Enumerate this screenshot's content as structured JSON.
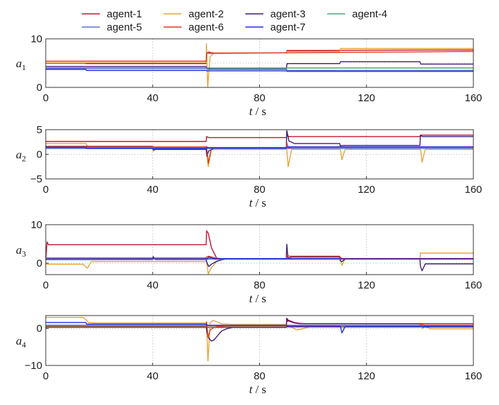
{
  "legend": [
    "agent-1",
    "agent-2",
    "agent-3",
    "agent-4",
    "agent-5",
    "agent-6",
    "agent-7"
  ],
  "colors": {
    "agent-1": "#c8102e",
    "agent-2": "#e8a33d",
    "agent-3": "#3d1a78",
    "agent-4": "#4aa67c",
    "agent-5": "#5b6fd6",
    "agent-6": "#d93a1f",
    "agent-7": "#1f2be0"
  },
  "chart_data": [
    {
      "type": "line",
      "ylabel_main": "a",
      "ylabel_sub": "1",
      "xlabel_main": "t",
      "xlabel_unit": " / s",
      "xlim": [
        0,
        160
      ],
      "ylim": [
        0,
        10
      ],
      "xticks": [
        0,
        40,
        80,
        120,
        160
      ],
      "xticklabels": [
        "0",
        "40",
        "80",
        "120",
        "160"
      ],
      "yticks": [
        0,
        5,
        10
      ],
      "yticklabels": [
        "0",
        "",
        "10"
      ],
      "series": [
        {
          "name": "agent-1",
          "x": [
            0,
            15,
            15.1,
            60,
            60.2,
            61,
            62,
            90,
            90.3,
            160
          ],
          "y": [
            5,
            5,
            4.9,
            4.9,
            7,
            7.3,
            7.1,
            7.1,
            7.6,
            7.7
          ]
        },
        {
          "name": "agent-2",
          "x": [
            0,
            60,
            60.1,
            60.6,
            61.5,
            63,
            90,
            90.3,
            110,
            110.3,
            160
          ],
          "y": [
            5.1,
            5.1,
            9,
            0.1,
            6.3,
            7.1,
            7.1,
            7.4,
            7.4,
            8,
            8
          ]
        },
        {
          "name": "agent-3",
          "x": [
            0,
            60,
            60.3,
            62,
            90,
            90.3,
            110,
            110.3,
            140,
            140.3,
            160
          ],
          "y": [
            4.3,
            4.3,
            3.9,
            3.8,
            3.8,
            4.9,
            4.9,
            5.3,
            5.3,
            4.8,
            4.8
          ]
        },
        {
          "name": "agent-4",
          "x": [
            0,
            160
          ],
          "y": [
            4.0,
            4.0
          ]
        },
        {
          "name": "agent-5",
          "x": [
            0,
            60,
            61,
            90,
            90.3,
            160
          ],
          "y": [
            3.9,
            3.9,
            3.7,
            3.7,
            3.5,
            3.5
          ]
        },
        {
          "name": "agent-6",
          "x": [
            0,
            60,
            60.3,
            61,
            160
          ],
          "y": [
            5.4,
            5.4,
            7.1,
            7.0,
            7.4
          ]
        },
        {
          "name": "agent-7",
          "x": [
            0,
            15,
            15.2,
            60,
            60.3,
            90,
            90.3,
            160
          ],
          "y": [
            3.7,
            3.7,
            3.5,
            3.5,
            3.4,
            3.4,
            3.3,
            3.3
          ]
        }
      ]
    },
    {
      "type": "line",
      "ylabel_main": "a",
      "ylabel_sub": "2",
      "xlabel_main": "t",
      "xlabel_unit": " / s",
      "xlim": [
        0,
        160
      ],
      "ylim": [
        -5,
        5
      ],
      "xticks": [
        0,
        40,
        80,
        120,
        160
      ],
      "xticklabels": [
        "0",
        "40",
        "80",
        "120",
        "160"
      ],
      "yticks": [
        -5,
        0,
        5
      ],
      "yticklabels": [
        "−5",
        "0",
        "5"
      ],
      "series": [
        {
          "name": "agent-1",
          "x": [
            0,
            60,
            60.2,
            61,
            90,
            90.2,
            91,
            140,
            140.2,
            160
          ],
          "y": [
            2.6,
            2.6,
            3.6,
            3.4,
            3.4,
            3.8,
            3.6,
            3.6,
            3.9,
            3.9
          ]
        },
        {
          "name": "agent-2",
          "x": [
            0,
            15,
            16,
            40,
            40.2,
            41,
            60,
            60.2,
            60.8,
            62,
            90,
            90.2,
            90.7,
            92,
            110,
            110.3,
            110.8,
            112,
            140,
            140.3,
            140.8,
            142,
            160
          ],
          "y": [
            2.2,
            2.2,
            1.3,
            1.3,
            0.6,
            1,
            1,
            0.9,
            -2.5,
            1,
            1,
            0.9,
            -2.5,
            1,
            1,
            0.9,
            -1.1,
            1,
            1,
            0.9,
            -1.6,
            1,
            1
          ]
        },
        {
          "name": "agent-3",
          "x": [
            0,
            40,
            40.2,
            41,
            60,
            60.3,
            61,
            63,
            90,
            90.2,
            91,
            93,
            110,
            110.2,
            111,
            140,
            140.2,
            141,
            160
          ],
          "y": [
            1.6,
            1.6,
            0.9,
            1,
            1,
            -0.4,
            0.7,
            1.2,
            1.2,
            4.8,
            2.7,
            2.2,
            2.2,
            1.7,
            1.8,
            1.8,
            3.8,
            3.6,
            3.6
          ]
        },
        {
          "name": "agent-4",
          "x": [
            0,
            160
          ],
          "y": [
            1.4,
            1.4
          ]
        },
        {
          "name": "agent-5",
          "x": [
            0,
            160
          ],
          "y": [
            1.2,
            1.2
          ]
        },
        {
          "name": "agent-6",
          "x": [
            0,
            60,
            60.2,
            60.8,
            62,
            90,
            90.2,
            90.8,
            92,
            160
          ],
          "y": [
            1.5,
            1.5,
            1.6,
            -1.8,
            1.3,
            1.3,
            2.4,
            1.2,
            1.5,
            1.5
          ]
        },
        {
          "name": "agent-7",
          "x": [
            0,
            15,
            15.2,
            60,
            60.3,
            61,
            90,
            90.2,
            160
          ],
          "y": [
            1.4,
            1.4,
            1.2,
            1.2,
            1.4,
            1.3,
            1.3,
            1.5,
            1.5
          ]
        }
      ]
    },
    {
      "type": "line",
      "ylabel_main": "a",
      "ylabel_sub": "3",
      "xlabel_main": "t",
      "xlabel_unit": " / s",
      "xlim": [
        0,
        160
      ],
      "ylim": [
        -3,
        10
      ],
      "xticks": [
        0,
        40,
        80,
        120,
        160
      ],
      "xticklabels": [
        "0",
        "40",
        "80",
        "120",
        "160"
      ],
      "yticks": [
        0,
        10
      ],
      "yticklabels": [
        "0",
        "10"
      ],
      "series": [
        {
          "name": "agent-1",
          "x": [
            0,
            0.5,
            1,
            60,
            60.2,
            60.8,
            62,
            64,
            66,
            68,
            70,
            72,
            90,
            160
          ],
          "y": [
            0.7,
            5.5,
            4.8,
            4.8,
            8.4,
            7.8,
            4,
            1.2,
            1,
            1.1,
            1.1,
            1.1,
            1.1,
            1.1
          ]
        },
        {
          "name": "agent-2",
          "x": [
            0,
            14,
            15,
            15.6,
            17,
            40,
            60,
            60.2,
            60.8,
            62,
            64,
            66,
            68,
            70,
            72,
            90,
            110,
            110.2,
            110.8,
            112,
            140,
            140.2,
            141,
            160
          ],
          "y": [
            -0.3,
            -0.3,
            -1,
            -1.3,
            0.4,
            0.4,
            0.4,
            0.4,
            -2.8,
            -1.2,
            0.4,
            0.9,
            1.1,
            1.1,
            1.1,
            1.1,
            1.1,
            1.1,
            -0.6,
            1.1,
            1.1,
            2.7,
            2.6,
            2.6
          ]
        },
        {
          "name": "agent-3",
          "x": [
            0,
            40,
            40.2,
            41,
            60,
            60.3,
            61,
            62,
            64,
            66,
            68,
            70,
            72,
            90,
            90.2,
            90.6,
            92,
            110,
            110.2,
            110.8,
            112,
            140,
            140.2,
            140.8,
            142,
            160
          ],
          "y": [
            0.9,
            0.9,
            1.7,
            0.9,
            0.9,
            0.2,
            -0.9,
            -0.3,
            0.5,
            0.9,
            1.1,
            1.1,
            1.1,
            1.1,
            4.9,
            1.3,
            1.6,
            1.6,
            0.6,
            0.4,
            1,
            1,
            -0.8,
            -2,
            -0.2,
            -0.2
          ]
        },
        {
          "name": "agent-4",
          "x": [
            0,
            160
          ],
          "y": [
            1.0,
            1.0
          ]
        },
        {
          "name": "agent-5",
          "x": [
            0,
            160
          ],
          "y": [
            1.2,
            1.2
          ]
        },
        {
          "name": "agent-6",
          "x": [
            0,
            60,
            60.2,
            61,
            63,
            66,
            90,
            90.3,
            91,
            110,
            110.3,
            111,
            160
          ],
          "y": [
            1.2,
            1.2,
            1.6,
            1.8,
            1.4,
            1.1,
            1.1,
            2.1,
            1.8,
            1.8,
            1.4,
            1.2,
            1.2
          ]
        },
        {
          "name": "agent-7",
          "x": [
            0,
            60,
            60.3,
            61,
            63,
            160
          ],
          "y": [
            1.3,
            1.3,
            1.0,
            1.6,
            1.1,
            1.1
          ]
        }
      ]
    },
    {
      "type": "line",
      "ylabel_main": "a",
      "ylabel_sub": "4",
      "xlabel_main": "t",
      "xlabel_unit": " / s",
      "xlim": [
        0,
        160
      ],
      "ylim": [
        -10,
        3.5
      ],
      "xticks": [
        0,
        40,
        80,
        120,
        160
      ],
      "xticklabels": [
        "0",
        "40",
        "80",
        "120",
        "160"
      ],
      "yticks": [
        -10,
        0
      ],
      "yticklabels": [
        "−10",
        "0"
      ],
      "series": [
        {
          "name": "agent-1",
          "x": [
            0,
            90,
            90.2,
            90.5,
            91,
            93,
            95,
            97,
            160
          ],
          "y": [
            0.3,
            0.3,
            2.8,
            1.9,
            2.2,
            1.6,
            1.4,
            1.3,
            1.3
          ]
        },
        {
          "name": "agent-2",
          "x": [
            0,
            14,
            15,
            16,
            18,
            60,
            60.2,
            60.7,
            61.5,
            62.5,
            64,
            66,
            68,
            70,
            90,
            92,
            94,
            96,
            98,
            100,
            140,
            140.2,
            140.8,
            142,
            144,
            160
          ],
          "y": [
            3,
            3,
            2.4,
            1.6,
            1.5,
            1.5,
            1.6,
            -8.8,
            1.5,
            2.2,
            1.8,
            1.2,
            1.2,
            1.1,
            1.1,
            0.3,
            -0.4,
            -0.1,
            0.3,
            0.6,
            0.6,
            0.9,
            0,
            0.5,
            -0.1,
            -0.1
          ]
        },
        {
          "name": "agent-3",
          "x": [
            0,
            60,
            60.3,
            61,
            62,
            63,
            64,
            65,
            66,
            68,
            70,
            90,
            90.2,
            91,
            93,
            95,
            97,
            140,
            140.2,
            141,
            160
          ],
          "y": [
            0.6,
            0.6,
            -1.1,
            -2.6,
            -3.4,
            -3.1,
            -2.2,
            -1.3,
            -0.6,
            0,
            0.3,
            0.3,
            2.7,
            2,
            1.5,
            1.3,
            1.3,
            1.3,
            0.8,
            0.4,
            0.4
          ]
        },
        {
          "name": "agent-4",
          "x": [
            0,
            160
          ],
          "y": [
            0.7,
            0.7
          ]
        },
        {
          "name": "agent-5",
          "x": [
            0,
            160
          ],
          "y": [
            0.9,
            0.9
          ]
        },
        {
          "name": "agent-6",
          "x": [
            0,
            60,
            60.2,
            60.7,
            61.5,
            63,
            65,
            67,
            90,
            140,
            140.2,
            140.8,
            142,
            160
          ],
          "y": [
            0.4,
            0.4,
            1.8,
            -2.4,
            -0.4,
            0.3,
            0.6,
            0.4,
            0.4,
            0.4,
            1.4,
            1,
            0.9,
            0.9
          ]
        },
        {
          "name": "agent-7",
          "x": [
            0,
            15,
            15.3,
            60,
            60.3,
            61,
            90,
            90.3,
            110,
            110.3,
            110.8,
            112,
            160
          ],
          "y": [
            1.6,
            1.6,
            1.2,
            1.2,
            0.9,
            0.8,
            0.8,
            0.6,
            0.6,
            0.5,
            -1.2,
            0.5,
            0.5
          ]
        }
      ]
    }
  ]
}
